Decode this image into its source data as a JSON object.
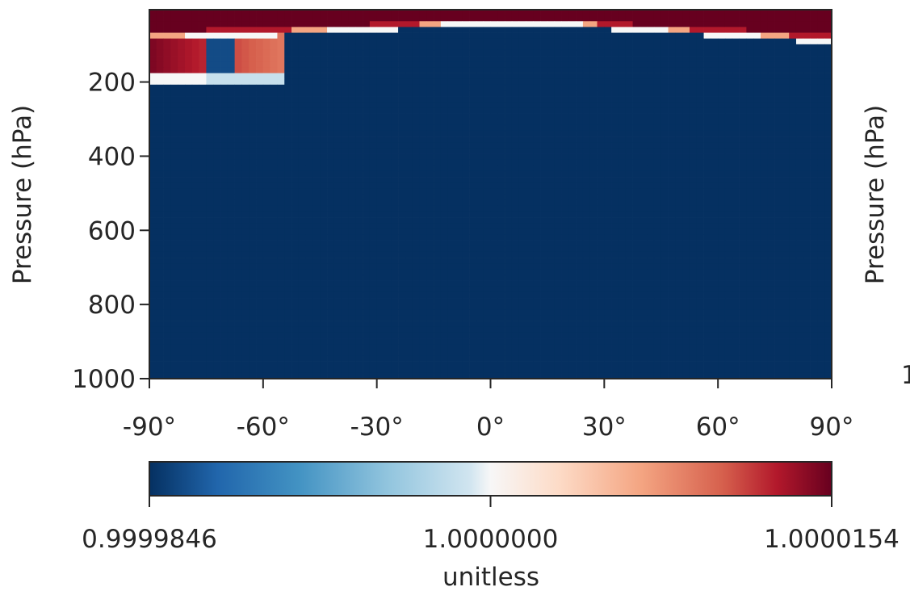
{
  "chart_data": {
    "type": "heatmap",
    "title": "",
    "xlabel": "",
    "ylabel": "Pressure (hPa)",
    "x_tick_labels": [
      "-90°",
      "-60°",
      "-30°",
      "0°",
      "30°",
      "60°",
      "90°"
    ],
    "x_ticks": [
      -90,
      -60,
      -30,
      0,
      30,
      60,
      90
    ],
    "xlim": [
      -90,
      90
    ],
    "y_tick_labels": [
      "200",
      "400",
      "600",
      "800",
      "1000"
    ],
    "y_ticks": [
      200,
      400,
      600,
      800,
      1000
    ],
    "ylim": [
      1000,
      5
    ],
    "y_inverted": true,
    "grid": false,
    "colormap": "RdBu_r",
    "colorbar": {
      "orientation": "horizontal",
      "placement": "bottom",
      "tick_labels": [
        "0.9999846",
        "1.0000000",
        "1.0000154"
      ],
      "ticks": [
        0.9999846,
        1.0,
        1.0000154
      ],
      "vmin": 0.9999846,
      "vmax": 1.0000154,
      "label": "unitless"
    },
    "background_value": 0.9999846,
    "field": {
      "cap_pressure_hpa": [
        [
          -90,
          80
        ],
        [
          -75,
          72
        ],
        [
          -60,
          67
        ],
        [
          -45,
          60
        ],
        [
          -30,
          52
        ],
        [
          -15,
          45
        ],
        [
          0,
          35
        ],
        [
          15,
          38
        ],
        [
          30,
          48
        ],
        [
          45,
          58
        ],
        [
          60,
          68
        ],
        [
          75,
          78
        ],
        [
          90,
          85
        ]
      ],
      "southern_lobe": {
        "lat_range": [
          -90,
          -55
        ],
        "base_pressure_hpa": 200,
        "inner_blue_lat": [
          -75,
          -68
        ],
        "inner_blue_pressure_hpa": [
          85,
          175
        ]
      }
    },
    "right_panel_partial": {
      "ylabel": "Pressure (hPa)",
      "y_tick_label_fragment": "1"
    }
  }
}
